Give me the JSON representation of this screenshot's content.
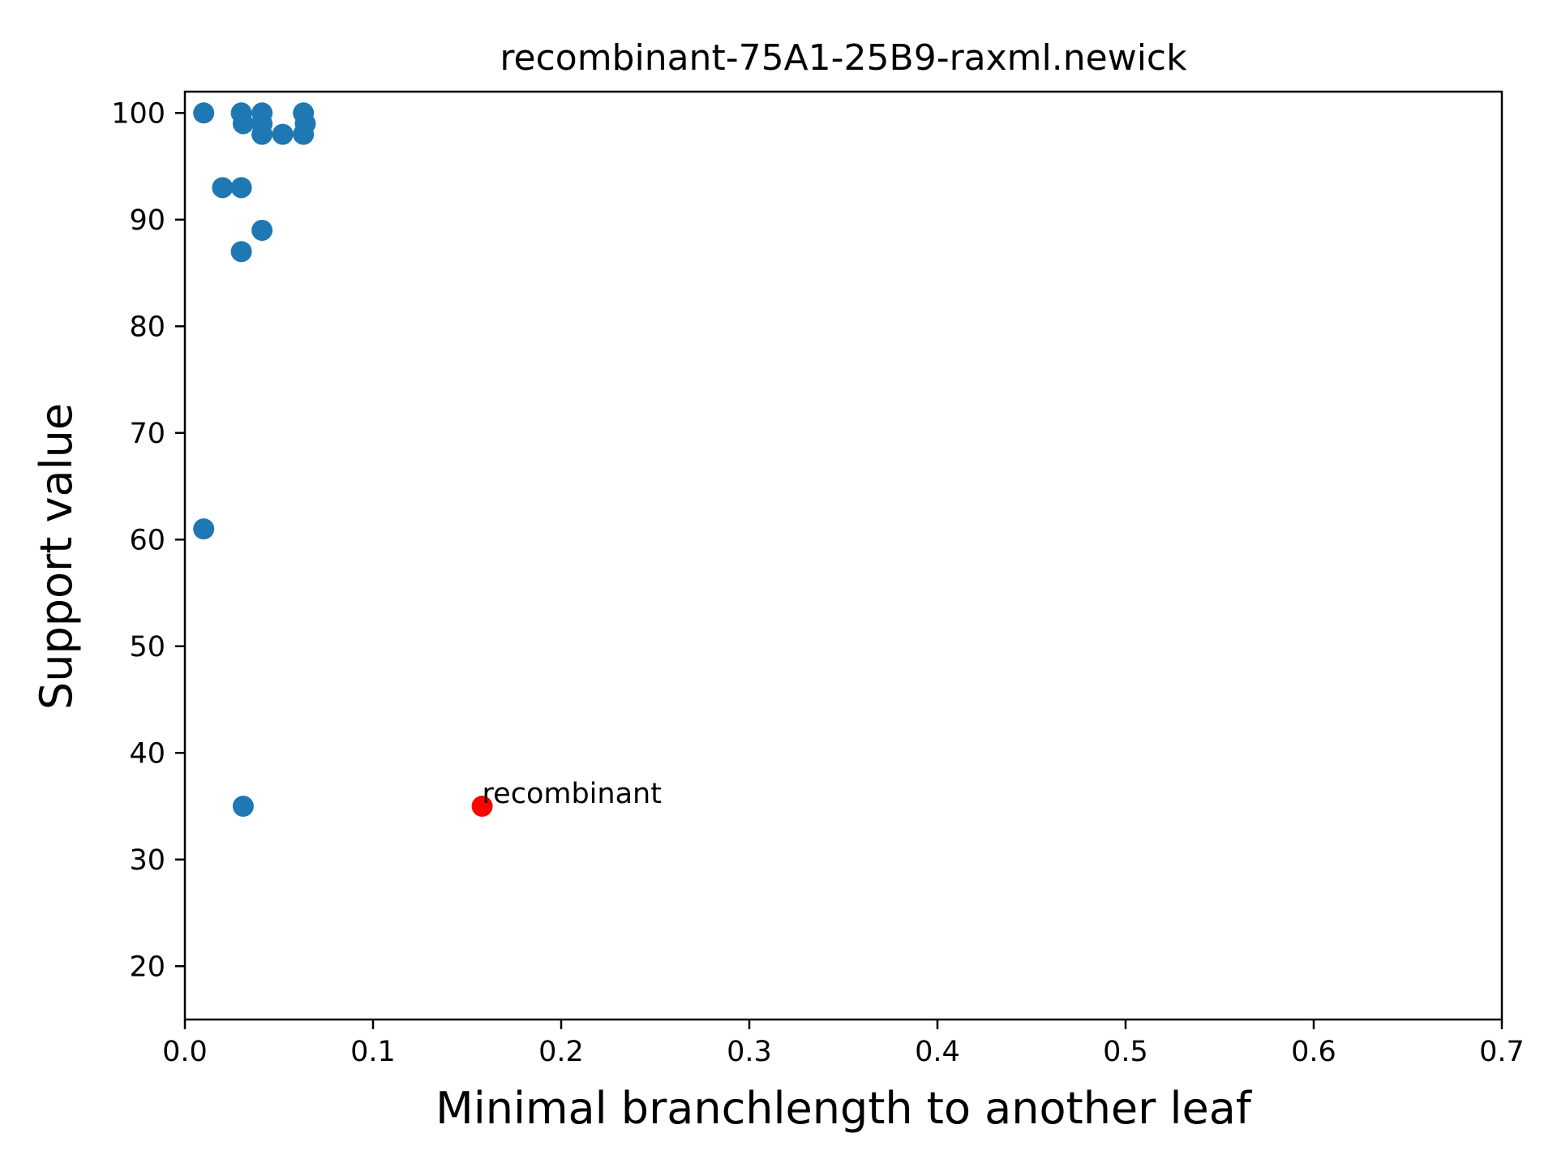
{
  "chart_data": {
    "type": "scatter",
    "title": "recombinant-75A1-25B9-raxml.newick",
    "xlabel": "Minimal branchlength to another leaf",
    "ylabel": "Support value",
    "xlim": [
      0.0,
      0.7
    ],
    "ylim": [
      15,
      102
    ],
    "xticks": [
      "0.0",
      "0.1",
      "0.2",
      "0.3",
      "0.4",
      "0.5",
      "0.6",
      "0.7"
    ],
    "yticks": [
      "20",
      "30",
      "40",
      "50",
      "60",
      "70",
      "80",
      "90",
      "100"
    ],
    "grid": false,
    "legend": "none",
    "series": [
      {
        "color": "#1f77b4",
        "points": [
          {
            "x": 0.01,
            "y": 100
          },
          {
            "x": 0.01,
            "y": 61
          },
          {
            "x": 0.02,
            "y": 93
          },
          {
            "x": 0.03,
            "y": 93
          },
          {
            "x": 0.03,
            "y": 100
          },
          {
            "x": 0.031,
            "y": 99
          },
          {
            "x": 0.03,
            "y": 87
          },
          {
            "x": 0.031,
            "y": 35
          },
          {
            "x": 0.041,
            "y": 100
          },
          {
            "x": 0.041,
            "y": 99
          },
          {
            "x": 0.041,
            "y": 98
          },
          {
            "x": 0.041,
            "y": 89
          },
          {
            "x": 0.052,
            "y": 98
          },
          {
            "x": 0.063,
            "y": 100
          },
          {
            "x": 0.064,
            "y": 99
          },
          {
            "x": 0.063,
            "y": 98
          }
        ]
      },
      {
        "color": "#ff0000",
        "points": [
          {
            "x": 0.158,
            "y": 35,
            "label": "recombinant"
          }
        ]
      }
    ]
  }
}
